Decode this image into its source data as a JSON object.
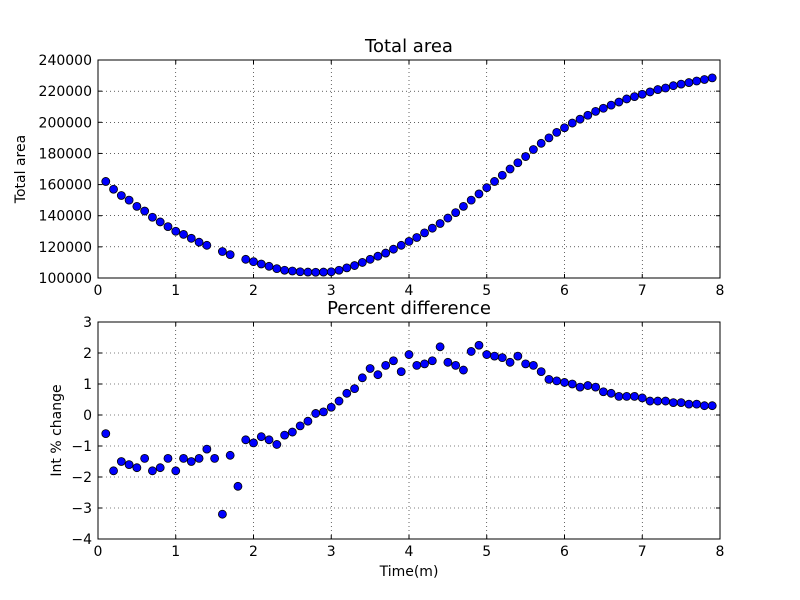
{
  "chart_data": [
    {
      "type": "scatter",
      "title": "Total area",
      "ylabel": "Total area",
      "color": "#0000ff",
      "grid": true,
      "xlim": [
        0,
        8
      ],
      "ylim": [
        100000,
        240000
      ],
      "xticks": [
        0,
        1,
        2,
        3,
        4,
        5,
        6,
        7,
        8
      ],
      "yticks": [
        100000,
        120000,
        140000,
        160000,
        180000,
        200000,
        220000,
        240000
      ],
      "x": [
        0.1,
        0.2,
        0.3,
        0.4,
        0.5,
        0.6,
        0.7,
        0.8,
        0.9,
        1.0,
        1.1,
        1.2,
        1.3,
        1.4,
        1.6,
        1.7,
        1.9,
        2.0,
        2.1,
        2.2,
        2.3,
        2.4,
        2.5,
        2.6,
        2.7,
        2.8,
        2.9,
        3.0,
        3.1,
        3.2,
        3.3,
        3.4,
        3.5,
        3.6,
        3.7,
        3.8,
        3.9,
        4.0,
        4.1,
        4.2,
        4.3,
        4.4,
        4.5,
        4.6,
        4.7,
        4.8,
        4.9,
        5.0,
        5.1,
        5.2,
        5.3,
        5.4,
        5.5,
        5.6,
        5.7,
        5.8,
        5.9,
        6.0,
        6.1,
        6.2,
        6.3,
        6.4,
        6.5,
        6.6,
        6.7,
        6.8,
        6.9,
        7.0,
        7.1,
        7.2,
        7.3,
        7.4,
        7.5,
        7.6,
        7.7,
        7.8,
        7.9
      ],
      "values": [
        162000,
        157000,
        153000,
        150000,
        146000,
        143000,
        139000,
        136000,
        133000,
        130000,
        128000,
        125500,
        123000,
        121000,
        117000,
        115000,
        112000,
        110500,
        109000,
        107500,
        106000,
        105000,
        104500,
        104000,
        103800,
        103700,
        103800,
        104000,
        105000,
        106500,
        108000,
        110000,
        112000,
        114000,
        116000,
        118500,
        121000,
        123500,
        126000,
        129000,
        132000,
        135000,
        138500,
        142000,
        146000,
        150000,
        154000,
        158000,
        162000,
        166000,
        170000,
        174000,
        178000,
        182500,
        186500,
        190000,
        193500,
        196500,
        199500,
        202000,
        204500,
        207000,
        209000,
        211000,
        213000,
        215000,
        216500,
        218000,
        219500,
        221000,
        222000,
        223500,
        224500,
        225500,
        226500,
        227500,
        228500
      ]
    },
    {
      "type": "scatter",
      "title": "Percent difference",
      "ylabel": "Int % change",
      "xlabel": "Time(m)",
      "color": "#0000ff",
      "grid": true,
      "xlim": [
        0,
        8
      ],
      "ylim": [
        -4,
        3
      ],
      "xticks": [
        0,
        1,
        2,
        3,
        4,
        5,
        6,
        7,
        8
      ],
      "yticks": [
        {
          "value": -4,
          "label": "−4"
        },
        {
          "value": -3,
          "label": "−3"
        },
        {
          "value": -2,
          "label": "−2"
        },
        {
          "value": -1,
          "label": "−1"
        },
        0,
        1,
        2,
        3
      ],
      "x": [
        0.1,
        0.2,
        0.3,
        0.4,
        0.5,
        0.6,
        0.7,
        0.8,
        0.9,
        1.0,
        1.1,
        1.2,
        1.3,
        1.4,
        1.5,
        1.6,
        1.7,
        1.8,
        1.9,
        2.0,
        2.1,
        2.2,
        2.3,
        2.4,
        2.5,
        2.6,
        2.7,
        2.8,
        2.9,
        3.0,
        3.1,
        3.2,
        3.3,
        3.4,
        3.5,
        3.6,
        3.7,
        3.8,
        3.9,
        4.0,
        4.1,
        4.2,
        4.3,
        4.4,
        4.5,
        4.6,
        4.7,
        4.8,
        4.9,
        5.0,
        5.1,
        5.2,
        5.3,
        5.4,
        5.5,
        5.6,
        5.7,
        5.8,
        5.9,
        6.0,
        6.1,
        6.2,
        6.3,
        6.4,
        6.5,
        6.6,
        6.7,
        6.8,
        6.9,
        7.0,
        7.1,
        7.2,
        7.3,
        7.4,
        7.5,
        7.6,
        7.7,
        7.8,
        7.9
      ],
      "values": [
        -0.6,
        -1.8,
        -1.5,
        -1.6,
        -1.7,
        -1.4,
        -1.8,
        -1.7,
        -1.4,
        -1.8,
        -1.4,
        -1.5,
        -1.4,
        -1.1,
        -1.4,
        -3.2,
        -1.3,
        -2.3,
        -0.8,
        -0.9,
        -0.7,
        -0.8,
        -0.95,
        -0.65,
        -0.55,
        -0.35,
        -0.2,
        0.05,
        0.1,
        0.25,
        0.45,
        0.7,
        0.85,
        1.2,
        1.5,
        1.3,
        1.6,
        1.75,
        1.4,
        1.95,
        1.6,
        1.65,
        1.75,
        2.2,
        1.7,
        1.6,
        1.45,
        2.05,
        2.25,
        1.95,
        1.9,
        1.85,
        1.7,
        1.9,
        1.65,
        1.6,
        1.4,
        1.15,
        1.1,
        1.05,
        1.0,
        0.9,
        0.95,
        0.9,
        0.75,
        0.7,
        0.6,
        0.6,
        0.6,
        0.55,
        0.45,
        0.45,
        0.45,
        0.4,
        0.4,
        0.35,
        0.35,
        0.3,
        0.3
      ]
    }
  ]
}
